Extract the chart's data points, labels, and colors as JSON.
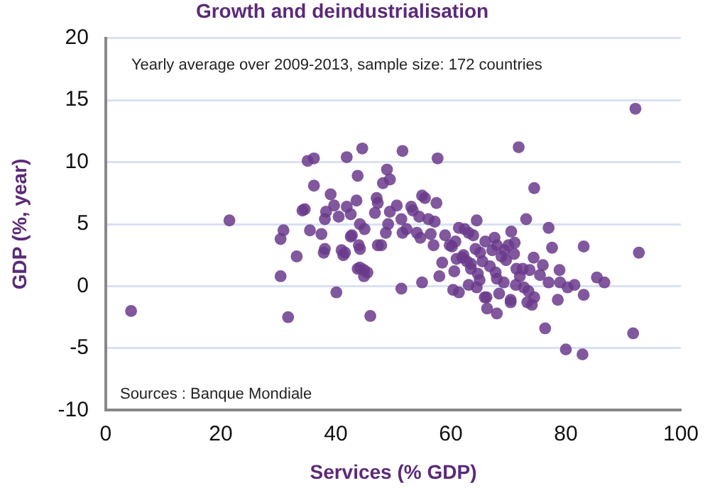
{
  "chart_data": {
    "type": "scatter",
    "title": "Growth and deindustrialisation",
    "xlabel": "Services (% GDP)",
    "ylabel": "GDP (%, year)",
    "annotations": [
      "Yearly average over 2009-2013, sample size: 172 countries",
      "Sources : Banque Mondiale"
    ],
    "xlim": [
      0,
      100
    ],
    "xticks": [
      0,
      20,
      40,
      60,
      80,
      100
    ],
    "ylim": [
      -10,
      20
    ],
    "yticks": [
      -10,
      -5,
      0,
      5,
      10,
      15,
      20
    ],
    "grid": "y",
    "marker": "circle",
    "series": [
      {
        "color": "#6b3a8c",
        "x": [
          4.4,
          21.5,
          30.9,
          30.4,
          33.2,
          30.4,
          31.7,
          34.2,
          35.1,
          36.2,
          41.9,
          44.6,
          36.2,
          39.1,
          43.8,
          34.6,
          39.7,
          38.3,
          38.1,
          40.5,
          41.9,
          42.6,
          43.6,
          44.2,
          35.5,
          37.5,
          42.8,
          38.1,
          41,
          44,
          37.9,
          41.3,
          40.1,
          43.8,
          51.6,
          57.7,
          48.9,
          49.4,
          48.2,
          45,
          47.1,
          47.3,
          46.8,
          49.4,
          50.6,
          49.1,
          48.7,
          47.9,
          47.3,
          51.4,
          51.6,
          52.3,
          53.1,
          53.4,
          55,
          55.5,
          57.5,
          54.5,
          56.1,
          57.2,
          54.1,
          54.7,
          56.5,
          57,
          59,
          59.8,
          51.4,
          55,
          58,
          46,
          41.6,
          44.2,
          44.2,
          44.9,
          45.5,
          44.9,
          42.6,
          61.4,
          62.4,
          63.1,
          63.9,
          64.5,
          60.2,
          61,
          60.6,
          60.4,
          61.4,
          63.1,
          64.7,
          65.1,
          65.5,
          64.5,
          66.2,
          66.3,
          68,
          67.6,
          68,
          67.2,
          66.8,
          68,
          64.3,
          62.2,
          63.5,
          92.1,
          71.8,
          74.5,
          73.1,
          77,
          92.7,
          83.1,
          77.6,
          74.4,
          78.9,
          85.4,
          86.7,
          83.1,
          78.6,
          81.5,
          80.3,
          79,
          77,
          76.4,
          80,
          82.9,
          91.7,
          70,
          71.1,
          68.8,
          69.6,
          71.4,
          72.5,
          73.7,
          69.2,
          71.3,
          72.7,
          68.4,
          70.4,
          73.3,
          74.5,
          74.1,
          65.9,
          70.4,
          62.8,
          66,
          70.5,
          72,
          60.8,
          63.5,
          67.8,
          71,
          75.5,
          58.5,
          62,
          65,
          69.3,
          73.5,
          76
        ],
        "values": [
          -2,
          5.3,
          4.5,
          3.8,
          2.4,
          0.8,
          -2.5,
          6.1,
          10.1,
          10.3,
          10.4,
          11.1,
          8.1,
          7.4,
          8.9,
          6.2,
          6.5,
          6,
          5.4,
          5.6,
          6.4,
          5.8,
          6.9,
          5,
          4.5,
          4.2,
          4.1,
          3,
          2.9,
          3.3,
          2.7,
          2.5,
          -0.5,
          1.4,
          10.9,
          10.3,
          9.4,
          8.6,
          8.3,
          4.6,
          7.1,
          6.7,
          5.9,
          6,
          6.5,
          5,
          4.3,
          3.3,
          3.3,
          5.4,
          4.3,
          4.6,
          6.4,
          6.1,
          7.3,
          7.1,
          6.7,
          5.6,
          5.4,
          5.2,
          4.3,
          3.9,
          4.2,
          3.3,
          4.1,
          3.3,
          -0.2,
          0.3,
          0.8,
          -2.4,
          2.7,
          3,
          1.5,
          1.3,
          1.1,
          0.8,
          4,
          4.7,
          4.6,
          4.3,
          4.1,
          5.3,
          3.2,
          2.2,
          1.2,
          -0.3,
          -0.5,
          0.1,
          1,
          2.7,
          2,
          -0.1,
          -0.9,
          -1.8,
          -2.2,
          3.9,
          3.3,
          2.9,
          1.6,
          0.6,
          3,
          2.5,
          1.4,
          14.3,
          11.2,
          7.9,
          5.4,
          4.7,
          2.7,
          3.2,
          3.1,
          2.3,
          1.3,
          0.7,
          0.3,
          -0.7,
          -1.1,
          0.1,
          -0.1,
          0.3,
          0.3,
          -3.4,
          -5.1,
          -5.5,
          -3.8,
          3.3,
          3.5,
          2.4,
          2.1,
          1.4,
          1.4,
          1.3,
          0.3,
          0.1,
          -0.1,
          -0.6,
          -1.1,
          -1.3,
          -0.9,
          -1.5,
          -0.9,
          -1.3,
          2,
          3.6,
          4.4,
          0.8,
          3.6,
          1.8,
          1.1,
          2.6,
          0.9,
          1.9,
          2.3,
          0.5,
          2.9,
          -0.4,
          1.7
        ]
      }
    ]
  }
}
